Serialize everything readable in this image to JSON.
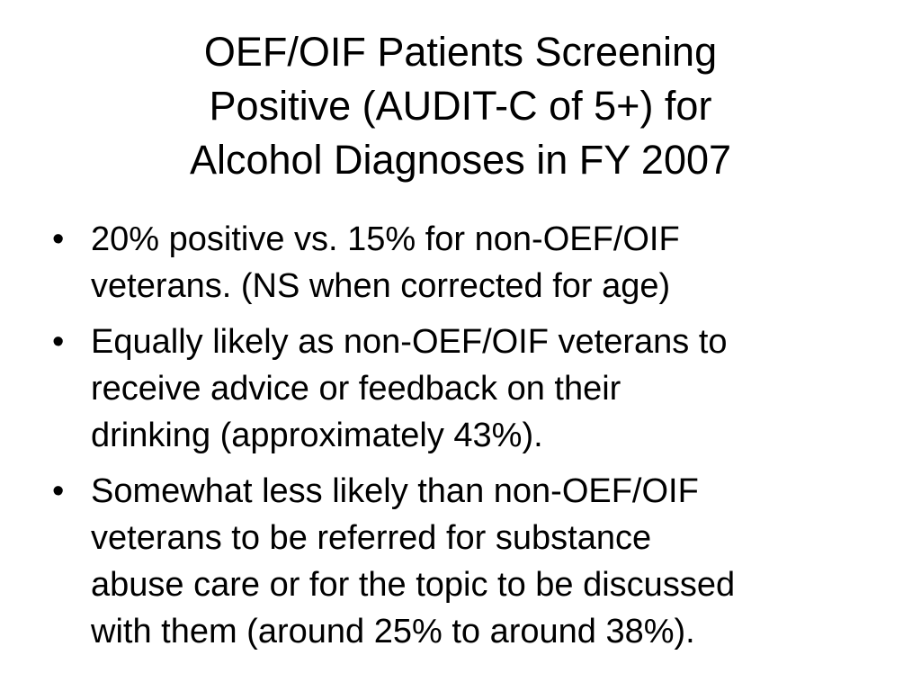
{
  "slide": {
    "title_lines": [
      "OEF/OIF Patients Screening",
      "Positive (AUDIT-C of 5+) for",
      "Alcohol Diagnoses in FY 2007"
    ],
    "bullet_symbol": "•",
    "bullets": [
      {
        "lines": [
          "20% positive vs. 15% for non-OEF/OIF",
          "veterans. (NS when corrected for age)"
        ]
      },
      {
        "lines": [
          "Equally likely as non-OEF/OIF veterans to",
          "receive advice or feedback on their",
          "drinking (approximately 43%)."
        ]
      },
      {
        "lines": [
          "Somewhat less likely than non-OEF/OIF",
          "veterans to be referred for substance",
          "abuse care or for the topic to be discussed",
          "with them (around 25% to around 38%)."
        ]
      }
    ]
  }
}
